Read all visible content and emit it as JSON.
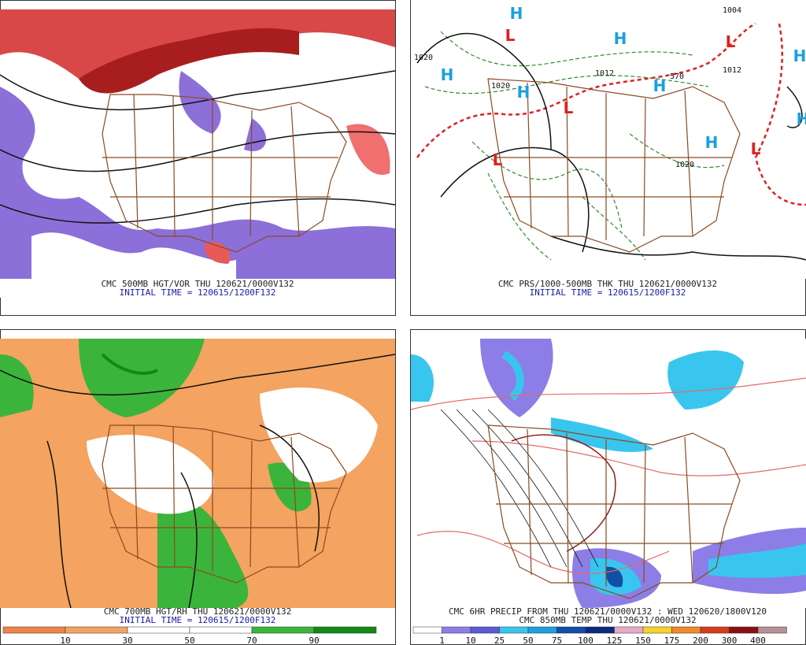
{
  "panels": [
    {
      "caption": "CMC 500MB HGT/VOR THU 120621/0000V132",
      "initial_time": "INITIAL TIME = 120615/1200F132"
    },
    {
      "caption": "CMC PRS/1000-500MB THK THU 120621/0000V132",
      "initial_time": "INITIAL TIME = 120615/1200F132",
      "labels": [
        "H",
        "L",
        "H",
        "H",
        "H",
        "L",
        "L",
        "H",
        "L",
        "H",
        "H",
        "L",
        "H",
        "1020",
        "1020",
        "1012",
        "570",
        "1012",
        "1020",
        "1004"
      ]
    },
    {
      "caption": "CMC 700MB HGT/RH THU 120621/0000V132",
      "initial_time": "INITIAL TIME = 120615/1200F132",
      "colorbar": [
        10,
        30,
        50,
        70,
        90
      ]
    },
    {
      "caption": "CMC 6HR PRECIP FROM THU 120621/0000V132 : WED 120620/1800V120",
      "subcaption": "CMC 850MB TEMP THU 120621/0000V132",
      "colorbar": [
        1,
        10,
        25,
        50,
        75,
        100,
        125,
        150,
        175,
        200,
        300,
        400
      ]
    }
  ]
}
